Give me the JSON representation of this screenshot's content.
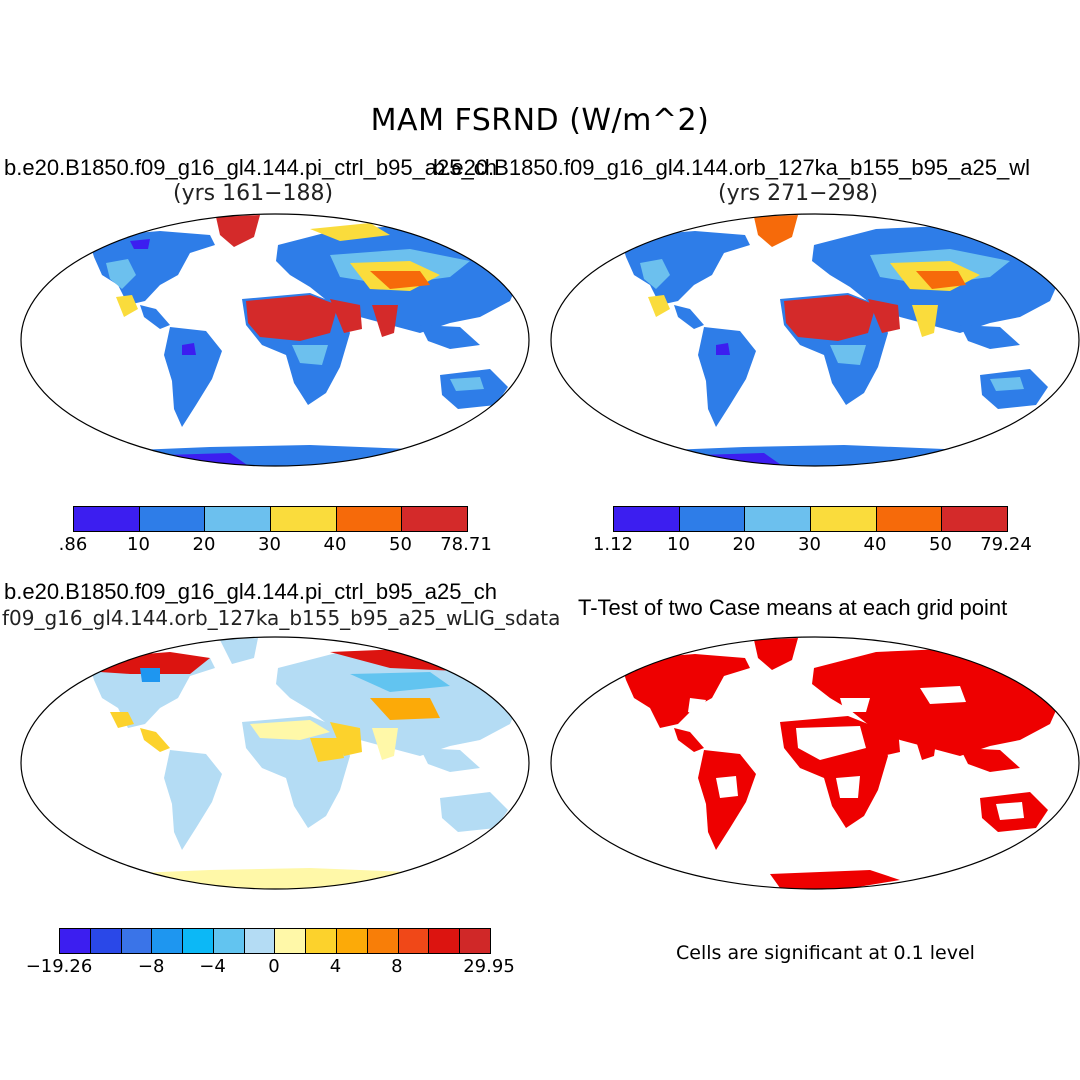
{
  "title": "MAM FSRND (W/m^2)",
  "panels": {
    "top_left": {
      "case": "b.e20.B1850.f09_g16_gl4.144.pi_ctrl_b95_a25_ch",
      "years": "(yrs 161−188)"
    },
    "top_right": {
      "case": "b.e20.B1850.f09_g16_gl4.144.orb_127ka_b155_b95_a25_wl",
      "years": "(yrs 271−298)"
    },
    "bottom_left": {
      "case": "b.e20.B1850.f09_g16_gl4.144.pi_ctrl_b95_a25_ch",
      "subtitle": "f09_g16_gl4.144.orb_127ka_b155_b95_a25_wLIG_sdata"
    },
    "bottom_right": {
      "title": "T-Test of two Case means at each grid point",
      "note": "Cells are significant at 0.1 level"
    }
  },
  "colorbars": {
    "top_left": {
      "colors": [
        "#3c1ef0",
        "#2e7de8",
        "#6cc0ee",
        "#fadc3c",
        "#f66a0a",
        "#d42a2a"
      ],
      "labels": [
        ".86",
        "10",
        "20",
        "30",
        "40",
        "50",
        "78.71"
      ]
    },
    "top_right": {
      "colors": [
        "#3c1ef0",
        "#2e7de8",
        "#6cc0ee",
        "#fadc3c",
        "#f66a0a",
        "#d42a2a"
      ],
      "labels": [
        "1.12",
        "10",
        "20",
        "30",
        "40",
        "50",
        "79.24"
      ]
    },
    "diff": {
      "colors": [
        "#3c1ef0",
        "#2a48e8",
        "#3a74e8",
        "#1e96f0",
        "#0cb8f6",
        "#62c4f0",
        "#b4dcf4",
        "#fff8a8",
        "#fcd22c",
        "#fcaa08",
        "#f87e08",
        "#f04818",
        "#dc1410",
        "#d02828"
      ],
      "labels": [
        "−19.26",
        "−8",
        "−4",
        "0",
        "4",
        "8",
        "29.95"
      ]
    }
  },
  "colors": {
    "land_base": "#2e7de8",
    "ttest_sig": "#ee0000",
    "diff_base": "#b4dcf4"
  }
}
